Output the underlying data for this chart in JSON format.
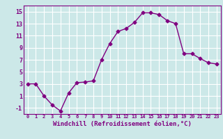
{
  "x": [
    0,
    1,
    2,
    3,
    4,
    5,
    6,
    7,
    8,
    9,
    10,
    11,
    12,
    13,
    14,
    15,
    16,
    17,
    18,
    19,
    20,
    21,
    22,
    23
  ],
  "y": [
    3.0,
    3.0,
    1.0,
    -0.5,
    -1.5,
    1.5,
    3.2,
    3.3,
    3.5,
    7.0,
    9.7,
    11.7,
    12.2,
    13.2,
    14.8,
    14.8,
    14.5,
    13.5,
    13.0,
    8.0,
    8.0,
    7.2,
    6.5,
    6.3
  ],
  "line_color": "#800080",
  "marker": "D",
  "marker_size": 2.5,
  "linewidth": 1.0,
  "xlabel": "Windchill (Refroidissement éolien,°C)",
  "xlabel_fontsize": 6.5,
  "ylim": [
    -2,
    16
  ],
  "xlim": [
    -0.5,
    23.5
  ],
  "yticks": [
    -1,
    1,
    3,
    5,
    7,
    9,
    11,
    13,
    15
  ],
  "xtick_labels": [
    "0",
    "1",
    "2",
    "3",
    "4",
    "5",
    "6",
    "7",
    "8",
    "9",
    "10",
    "11",
    "12",
    "13",
    "14",
    "15",
    "16",
    "17",
    "18",
    "19",
    "20",
    "21",
    "22",
    "23"
  ],
  "bg_color": "#cce8e8",
  "grid_color": "#ffffff",
  "tick_color": "#800080",
  "label_color": "#800080",
  "spine_color": "#800080"
}
